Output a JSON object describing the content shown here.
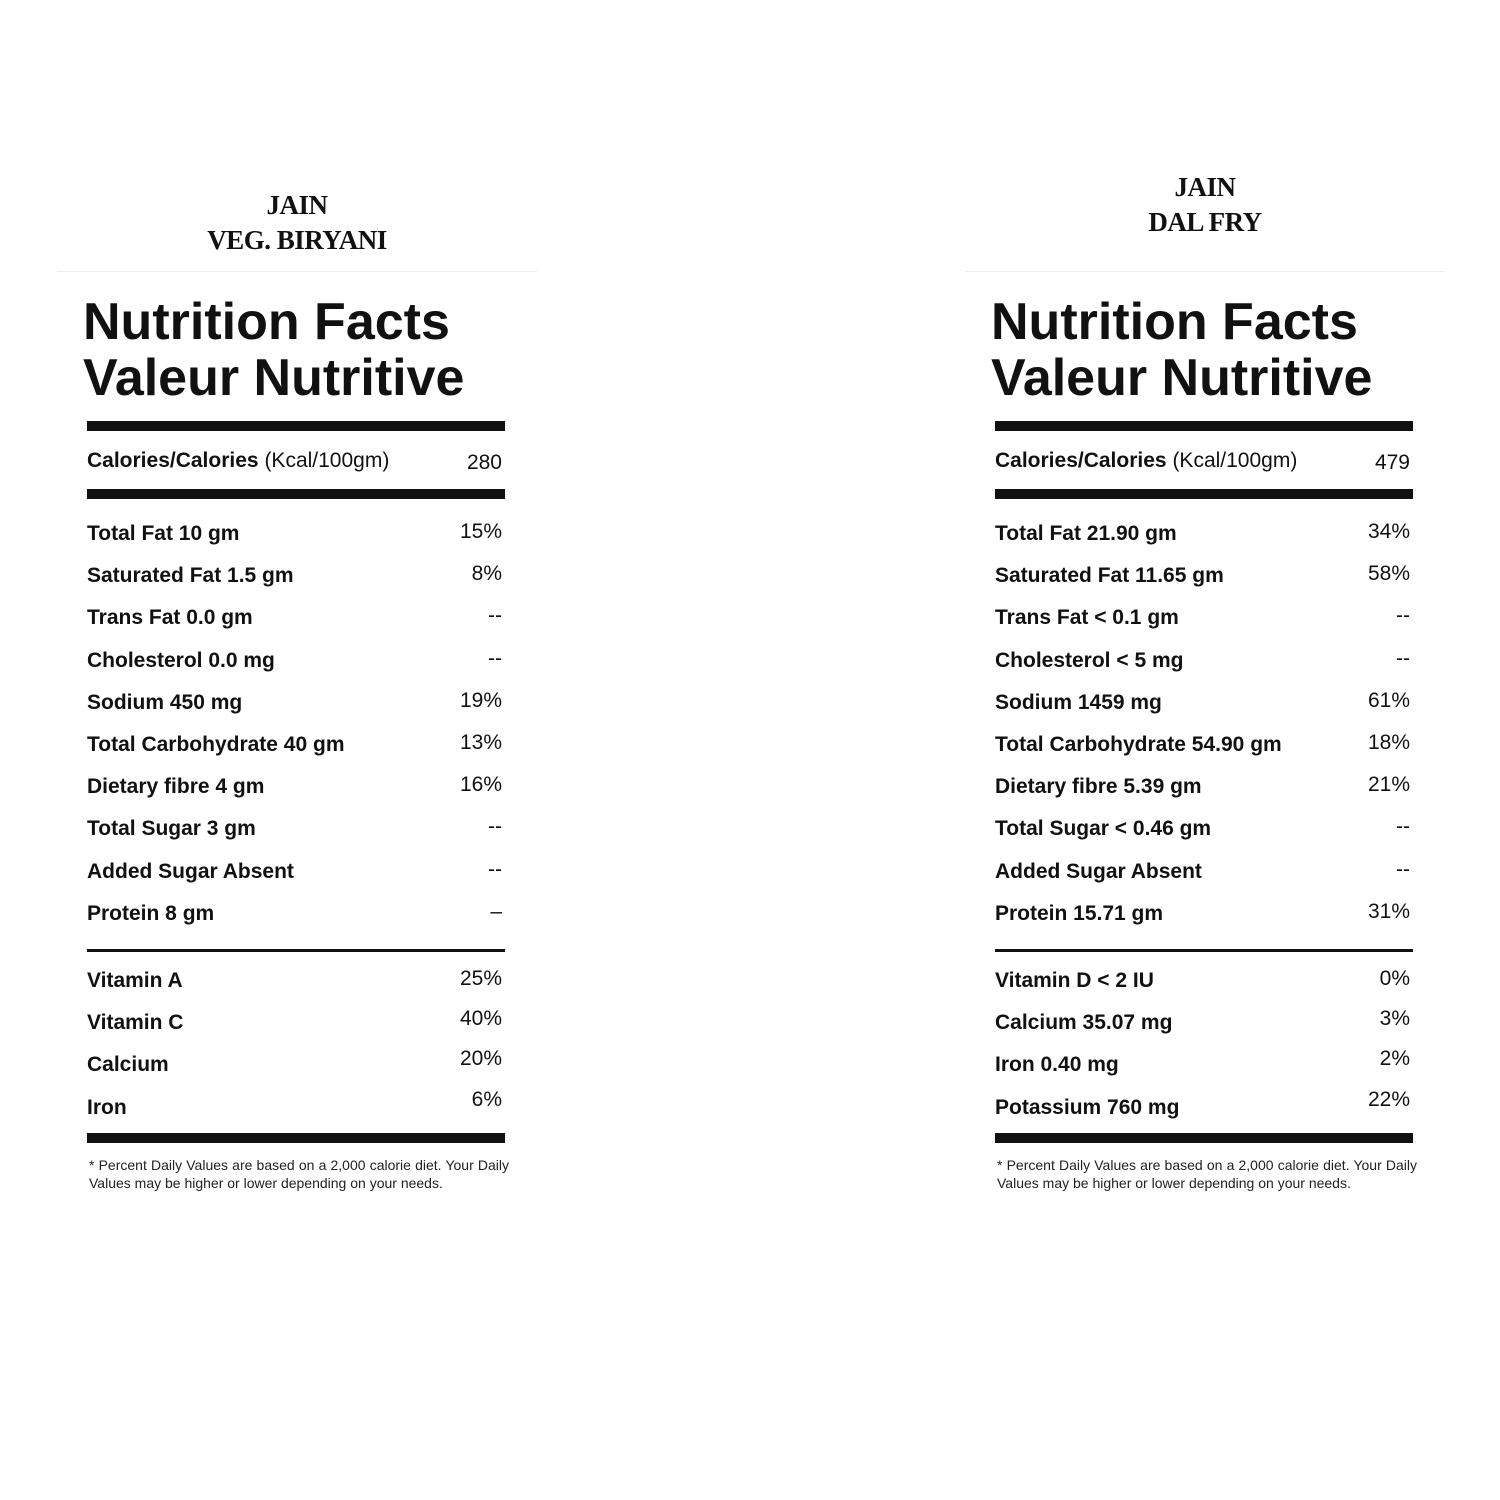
{
  "panels": [
    {
      "title": [
        "JAIN",
        "VEG. BIRYANI"
      ],
      "heading": [
        "Nutrition Facts",
        "Valeur Nutritive"
      ],
      "calories_label": "Calories/Calories",
      "calories_unit": "(Kcal/100gm)",
      "calories_value": "280",
      "nutrients": [
        {
          "name": "Total Fat 10 gm",
          "value": "15%"
        },
        {
          "name": "Saturated Fat 1.5 gm",
          "value": "8%"
        },
        {
          "name": "Trans Fat 0.0 gm",
          "value": "--"
        },
        {
          "name": "Cholesterol 0.0 mg",
          "value": "--"
        },
        {
          "name": "Sodium 450 mg",
          "value": "19%"
        },
        {
          "name": "Total Carbohydrate 40 gm",
          "value": "13%"
        },
        {
          "name": "Dietary fibre 4 gm",
          "value": "16%"
        },
        {
          "name": "Total Sugar 3 gm",
          "value": "--"
        },
        {
          "name": "Added Sugar Absent",
          "value": "--"
        },
        {
          "name": "Protein 8 gm",
          "value": "–"
        }
      ],
      "vitamins": [
        {
          "name": "Vitamin A",
          "value": "25%"
        },
        {
          "name": "Vitamin C",
          "value": "40%"
        },
        {
          "name": "Calcium",
          "value": "20%"
        },
        {
          "name": "Iron",
          "value": "6%"
        }
      ],
      "footnote": "* Percent Daily Values are based on a 2,000 calorie diet. Your Daily Values may be higher or lower depending on your needs."
    },
    {
      "title": [
        "JAIN",
        "DAL FRY"
      ],
      "heading": [
        "Nutrition Facts",
        "Valeur Nutritive"
      ],
      "calories_label": "Calories/Calories",
      "calories_unit": "(Kcal/100gm)",
      "calories_value": "479",
      "nutrients": [
        {
          "name": "Total Fat 21.90 gm",
          "value": "34%"
        },
        {
          "name": "Saturated Fat 11.65 gm",
          "value": "58%"
        },
        {
          "name": "Trans Fat < 0.1 gm",
          "value": "--"
        },
        {
          "name": "Cholesterol < 5 mg",
          "value": "--"
        },
        {
          "name": "Sodium 1459 mg",
          "value": "61%"
        },
        {
          "name": "Total Carbohydrate 54.90 gm",
          "value": "18%"
        },
        {
          "name": "Dietary fibre 5.39 gm",
          "value": "21%"
        },
        {
          "name": "Total Sugar < 0.46 gm",
          "value": "--"
        },
        {
          "name": "Added Sugar Absent",
          "value": "--"
        },
        {
          "name": "Protein 15.71 gm",
          "value": "31%"
        }
      ],
      "vitamins": [
        {
          "name": "Vitamin D < 2 IU",
          "value": "0%"
        },
        {
          "name": "Calcium 35.07 mg",
          "value": "3%"
        },
        {
          "name": "Iron 0.40 mg",
          "value": "2%"
        },
        {
          "name": "Potassium 760 mg",
          "value": "22%"
        }
      ],
      "footnote": "* Percent Daily Values are based on a 2,000 calorie diet. Your Daily Values may be higher or lower depending on your needs."
    }
  ]
}
